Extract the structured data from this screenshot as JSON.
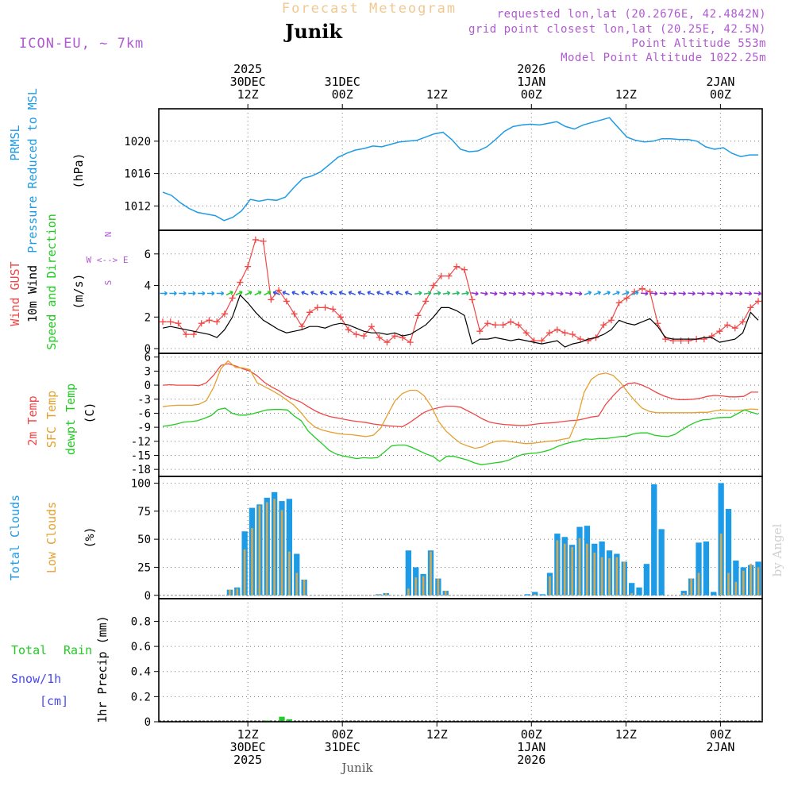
{
  "header": {
    "title": "Forecast Meteogram",
    "location": "Junik",
    "model": "ICON-EU, ~ 7km",
    "requested": "requested lon,lat (20.2676E, 42.4842N)",
    "gridpoint": "grid point closest lon,lat (20.25E, 42.5N)",
    "point_alt": "Point Altitude 553m",
    "model_alt": "Model Point Altitude 1022.25m",
    "watermark": "by Angel",
    "footer_name": "Junik"
  },
  "colors": {
    "title": "#f0c890",
    "location": "#000000",
    "info": "#b05ad0",
    "prmsl": "#1e9be6",
    "gust": "#f04848",
    "wind": "#000000",
    "green": "#22cc22",
    "t2m": "#f04848",
    "sfc": "#e6a030",
    "dew": "#22cc22",
    "total_cloud": "#1e9be6",
    "low_cloud": "#d4a850",
    "snow": "#4848f0",
    "axis": "#000000",
    "grid": "#777777"
  },
  "time_axis": {
    "n": 64,
    "top_ticks": [
      {
        "idx": 9,
        "lines": [
          "2025",
          "30DEC",
          "12Z"
        ]
      },
      {
        "idx": 19,
        "lines": [
          "",
          "31DEC",
          "00Z"
        ]
      },
      {
        "idx": 29,
        "lines": [
          "",
          "",
          "12Z"
        ]
      },
      {
        "idx": 39,
        "lines": [
          "2026",
          "1JAN",
          "00Z"
        ]
      },
      {
        "idx": 49,
        "lines": [
          "",
          "",
          "12Z"
        ]
      },
      {
        "idx": 59,
        "lines": [
          "",
          "2JAN",
          "00Z"
        ]
      }
    ],
    "bottom_ticks": [
      {
        "idx": 9,
        "lines": [
          "12Z",
          "30DEC",
          "2025"
        ]
      },
      {
        "idx": 19,
        "lines": [
          "00Z",
          "31DEC",
          ""
        ]
      },
      {
        "idx": 29,
        "lines": [
          "12Z",
          "",
          ""
        ]
      },
      {
        "idx": 39,
        "lines": [
          "00Z",
          "1JAN",
          "2026"
        ]
      },
      {
        "idx": 49,
        "lines": [
          "12Z",
          "",
          ""
        ]
      },
      {
        "idx": 59,
        "lines": [
          "00Z",
          "2JAN",
          ""
        ]
      }
    ]
  },
  "chart_data": [
    {
      "type": "line",
      "panel": "pressure",
      "labels": {
        "line1": "PRMSL",
        "line2": "Pressure Reduced to MSL",
        "unit": "(hPa)"
      },
      "ylim": [
        1009,
        1024
      ],
      "yticks": [
        1012,
        1016,
        1020
      ],
      "series": [
        {
          "name": "PRMSL",
          "color": "prmsl",
          "values": [
            1013.7,
            1013.3,
            1012.4,
            1011.7,
            1011.2,
            1011.0,
            1010.8,
            1010.2,
            1010.6,
            1011.4,
            1012.8,
            1012.6,
            1012.8,
            1012.7,
            1013.1,
            1014.3,
            1015.4,
            1015.7,
            1016.2,
            1017.1,
            1018.0,
            1018.5,
            1018.9,
            1019.1,
            1019.4,
            1019.3,
            1019.6,
            1019.9,
            1020.0,
            1020.1,
            1020.5,
            1020.9,
            1021.1,
            1020.2,
            1019.0,
            1018.7,
            1018.8,
            1019.3,
            1020.2,
            1021.2,
            1021.8,
            1022.0,
            1022.1,
            1022.0,
            1022.2,
            1022.4,
            1021.8,
            1021.5,
            1022.0,
            1022.3,
            1022.6,
            1022.9,
            1021.7,
            1020.5,
            1020.1,
            1019.9,
            1020.0,
            1020.3,
            1020.3,
            1020.2,
            1020.2,
            1020.0,
            1019.3,
            1019.0,
            1019.2,
            1018.5,
            1018.1,
            1018.3,
            1018.3
          ]
        }
      ]
    },
    {
      "type": "line",
      "panel": "wind",
      "labels": {
        "gust": "Wind GUST",
        "wind10": "10m Wind",
        "dir": "Speed and Direction",
        "unit": "(m/s)",
        "compass": "W <--> E",
        "n": "N",
        "s": "S"
      },
      "ylim": [
        -0.3,
        7.5
      ],
      "yticks": [
        0,
        2,
        4,
        6
      ],
      "arrow_level": 3.5,
      "series": [
        {
          "name": "Wind GUST",
          "color": "gust",
          "marker": "+",
          "values": [
            1.7,
            1.7,
            1.6,
            0.9,
            0.9,
            1.6,
            1.8,
            1.7,
            2.2,
            3.2,
            4.2,
            5.2,
            6.9,
            6.8,
            3.1,
            3.7,
            3.0,
            2.2,
            1.4,
            2.3,
            2.6,
            2.6,
            2.5,
            2.0,
            1.2,
            0.9,
            0.8,
            1.4,
            0.7,
            0.4,
            0.8,
            0.7,
            0.4,
            2.1,
            3.0,
            4.0,
            4.6,
            4.6,
            5.2,
            5.0,
            3.1,
            1.1,
            1.6,
            1.5,
            1.5,
            1.7,
            1.5,
            1.0,
            0.5,
            0.5,
            1.0,
            1.2,
            1.0,
            0.9,
            0.6,
            0.5,
            0.7,
            1.5,
            1.8,
            2.9,
            3.2,
            3.6,
            3.8,
            3.6,
            1.6,
            0.6,
            0.5,
            0.5,
            0.5,
            0.6,
            0.6,
            0.8,
            1.1,
            1.5,
            1.3,
            1.7,
            2.6,
            3.0
          ]
        },
        {
          "name": "10m Wind",
          "color": "wind",
          "values": [
            1.3,
            1.4,
            1.3,
            1.2,
            1.1,
            1.0,
            0.9,
            0.7,
            1.2,
            2.0,
            3.4,
            2.9,
            2.3,
            1.8,
            1.5,
            1.2,
            1.0,
            1.1,
            1.2,
            1.4,
            1.4,
            1.3,
            1.5,
            1.6,
            1.5,
            1.3,
            1.1,
            1.0,
            1.0,
            0.9,
            1.0,
            0.8,
            0.9,
            1.2,
            1.5,
            2.0,
            2.6,
            2.6,
            2.4,
            2.1,
            0.3,
            0.6,
            0.6,
            0.7,
            0.6,
            0.5,
            0.6,
            0.5,
            0.4,
            0.3,
            0.4,
            0.5,
            0.1,
            0.3,
            0.4,
            0.6,
            0.7,
            0.9,
            1.2,
            1.8,
            1.6,
            1.5,
            1.7,
            1.9,
            1.4,
            0.7,
            0.6,
            0.6,
            0.6,
            0.6,
            0.7,
            0.7,
            0.4,
            0.5,
            0.6,
            1.0,
            2.3,
            1.8
          ]
        }
      ]
    },
    {
      "type": "line",
      "panel": "temperature",
      "labels": {
        "t2m": "2m Temp",
        "sfc": "SFC Temp",
        "dew": "dewpt Temp",
        "unit": "(C)"
      },
      "ylim": [
        -19.5,
        6.8
      ],
      "yticks": [
        -18,
        -15,
        -12,
        -9,
        -6,
        -3,
        0,
        3,
        6
      ],
      "series": [
        {
          "name": "2m Temp",
          "color": "t2m",
          "values": [
            0.0,
            0.1,
            0.0,
            0.0,
            0.0,
            -0.1,
            0.5,
            2.1,
            4.2,
            4.6,
            4.1,
            3.5,
            3.0,
            2.0,
            0.6,
            -0.4,
            -1.2,
            -2.3,
            -3.0,
            -3.6,
            -4.6,
            -5.5,
            -6.2,
            -6.7,
            -7.0,
            -7.3,
            -7.6,
            -7.8,
            -8.0,
            -8.3,
            -8.5,
            -8.7,
            -8.8,
            -8.9,
            -8.0,
            -6.9,
            -5.8,
            -5.2,
            -4.8,
            -4.5,
            -4.5,
            -4.7,
            -5.5,
            -6.3,
            -7.2,
            -7.9,
            -8.2,
            -8.4,
            -8.5,
            -8.6,
            -8.6,
            -8.4,
            -8.2,
            -8.1,
            -8.0,
            -7.8,
            -7.6,
            -7.5,
            -7.2,
            -6.8,
            -6.6,
            -4.1,
            -2.3,
            -0.7,
            0.3,
            0.5,
            0.0,
            -0.7,
            -1.6,
            -2.3,
            -2.8,
            -3.1,
            -3.1,
            -3.0,
            -2.8,
            -2.4,
            -2.2,
            -2.3,
            -2.5,
            -2.5,
            -2.4,
            -1.5,
            -1.5
          ]
        },
        {
          "name": "SFC Temp",
          "color": "sfc",
          "values": [
            -4.6,
            -4.4,
            -4.3,
            -4.3,
            -4.3,
            -4.1,
            -3.3,
            -0.5,
            3.5,
            5.2,
            3.8,
            3.7,
            3.3,
            0.5,
            -0.3,
            -1.1,
            -2.0,
            -3.1,
            -4.2,
            -5.8,
            -7.7,
            -9.0,
            -9.6,
            -10.0,
            -10.3,
            -10.5,
            -10.6,
            -10.8,
            -11.0,
            -10.7,
            -9.2,
            -6.2,
            -3.3,
            -1.8,
            -1.1,
            -1.1,
            -2.3,
            -4.6,
            -7.8,
            -9.8,
            -11.2,
            -12.4,
            -13.0,
            -13.5,
            -13.2,
            -12.4,
            -12.0,
            -11.9,
            -12.1,
            -12.3,
            -12.5,
            -12.4,
            -12.2,
            -12.0,
            -11.9,
            -11.6,
            -11.3,
            -7.6,
            -1.6,
            1.2,
            2.3,
            2.6,
            2.1,
            0.6,
            -1.5,
            -3.3,
            -4.9,
            -5.6,
            -5.9,
            -5.9,
            -5.9,
            -5.9,
            -5.9,
            -5.9,
            -5.8,
            -5.8,
            -5.5,
            -5.3,
            -5.4,
            -5.4,
            -5.3,
            -5.1,
            -5.2
          ]
        },
        {
          "name": "dewpt Temp",
          "color": "dew",
          "values": [
            -8.8,
            -8.6,
            -8.3,
            -7.9,
            -7.8,
            -7.6,
            -7.1,
            -6.5,
            -5.2,
            -4.9,
            -6.0,
            -6.4,
            -6.4,
            -6.1,
            -5.7,
            -5.3,
            -5.2,
            -5.2,
            -5.3,
            -6.6,
            -7.6,
            -9.8,
            -11.2,
            -12.5,
            -13.9,
            -14.7,
            -15.1,
            -15.4,
            -15.7,
            -15.5,
            -15.6,
            -15.5,
            -14.3,
            -13.0,
            -12.8,
            -12.8,
            -13.3,
            -14.0,
            -14.7,
            -15.2,
            -16.3,
            -15.2,
            -15.2,
            -15.6,
            -16.0,
            -16.6,
            -17.0,
            -16.8,
            -16.6,
            -16.4,
            -16.0,
            -15.3,
            -14.8,
            -14.6,
            -14.5,
            -14.2,
            -13.8,
            -13.1,
            -12.6,
            -12.2,
            -11.9,
            -11.5,
            -11.6,
            -11.4,
            -11.4,
            -11.2,
            -11.0,
            -10.9,
            -10.4,
            -10.2,
            -10.2,
            -10.7,
            -10.9,
            -11.0,
            -10.5,
            -9.5,
            -8.6,
            -7.9,
            -7.4,
            -7.3,
            -7.0,
            -6.9,
            -6.9,
            -6.1,
            -5.3,
            -5.8,
            -6.2
          ]
        }
      ]
    },
    {
      "type": "bar",
      "panel": "clouds",
      "labels": {
        "total": "Total Clouds",
        "low": "Low Clouds",
        "unit": "(%)"
      },
      "ylim": [
        -3,
        106
      ],
      "yticks": [
        0,
        25,
        50,
        75,
        100
      ],
      "series": [
        {
          "name": "Total Clouds",
          "color": "total_cloud",
          "values": [
            0,
            0,
            0,
            0,
            0,
            0,
            0,
            0,
            0,
            5,
            7,
            57,
            78,
            81,
            87,
            92,
            84,
            86,
            37,
            14,
            0,
            0,
            0,
            0,
            0,
            0,
            0,
            0,
            0,
            1,
            2,
            0,
            0,
            40,
            25,
            19,
            40,
            15,
            4,
            0,
            0,
            0,
            0,
            0,
            0,
            0,
            0,
            0,
            0,
            1,
            3,
            1,
            20,
            55,
            52,
            45,
            61,
            62,
            46,
            48,
            40,
            37,
            30,
            11,
            7,
            28,
            99,
            59,
            0,
            0,
            4,
            15,
            47,
            48,
            3,
            100,
            77,
            31,
            25,
            27,
            30
          ]
        },
        {
          "name": "Low Clouds",
          "color": "low_cloud",
          "values": [
            0,
            0,
            0,
            0,
            0,
            0,
            0,
            0,
            0,
            5,
            6,
            41,
            60,
            80,
            83,
            86,
            76,
            39,
            20,
            14,
            0,
            0,
            0,
            0,
            0,
            0,
            0,
            0,
            0,
            1,
            2,
            0,
            0,
            6,
            16,
            17,
            39,
            15,
            4,
            0,
            0,
            0,
            0,
            0,
            0,
            0,
            0,
            0,
            0,
            0,
            1,
            0,
            17,
            49,
            46,
            43,
            51,
            46,
            38,
            34,
            33,
            34,
            30,
            2,
            0,
            0,
            0,
            0,
            0,
            0,
            2,
            15,
            20,
            0,
            0,
            55,
            20,
            12,
            22,
            28,
            25
          ]
        }
      ]
    },
    {
      "type": "bar",
      "panel": "precip",
      "labels": {
        "total": "Total",
        "rain": "Rain",
        "snow": "Snow/1h",
        "cm": "[cm]",
        "unit": "1hr Precip (mm)"
      },
      "ylim": [
        0,
        0.98
      ],
      "yticks": [
        0,
        0.2,
        0.4,
        0.6,
        0.8
      ],
      "series": [
        {
          "name": "Total",
          "color": "green",
          "values": [
            0,
            0,
            0,
            0,
            0,
            0,
            0,
            0,
            0,
            0,
            0,
            0,
            0,
            0,
            0.01,
            0.0,
            0.04,
            0.02,
            0,
            0,
            0,
            0,
            0,
            0,
            0,
            0,
            0,
            0,
            0,
            0,
            0,
            0,
            0,
            0,
            0,
            0,
            0,
            0,
            0,
            0,
            0,
            0,
            0,
            0,
            0,
            0,
            0,
            0,
            0,
            0,
            0,
            0,
            0,
            0,
            0,
            0,
            0,
            0,
            0,
            0,
            0,
            0,
            0,
            0,
            0,
            0,
            0,
            0,
            0,
            0,
            0,
            0,
            0,
            0,
            0,
            0,
            0,
            0,
            0,
            0,
            0
          ]
        },
        {
          "name": "Snow/1h",
          "color": "snow",
          "values": [
            0,
            0,
            0,
            0,
            0,
            0,
            0,
            0,
            0,
            0,
            0,
            0,
            0,
            0,
            0,
            0,
            0.01,
            0.01,
            0,
            0,
            0,
            0,
            0,
            0,
            0,
            0,
            0,
            0,
            0,
            0,
            0,
            0,
            0,
            0,
            0,
            0,
            0,
            0,
            0,
            0,
            0,
            0,
            0,
            0,
            0,
            0,
            0,
            0,
            0,
            0,
            0,
            0,
            0,
            0,
            0,
            0,
            0,
            0,
            0,
            0,
            0,
            0,
            0,
            0,
            0,
            0,
            0,
            0,
            0,
            0,
            0,
            0,
            0,
            0,
            0,
            0,
            0,
            0,
            0,
            0,
            0
          ]
        }
      ]
    }
  ]
}
